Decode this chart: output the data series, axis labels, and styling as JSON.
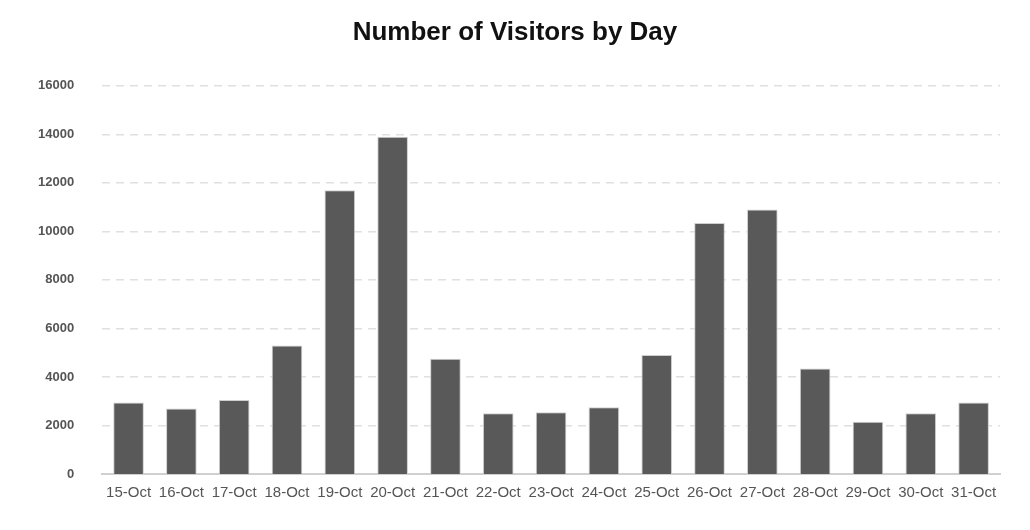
{
  "chart_data": {
    "type": "bar",
    "title": "Number of Visitors by Day",
    "categories": [
      "15-Oct",
      "16-Oct",
      "17-Oct",
      "18-Oct",
      "19-Oct",
      "20-Oct",
      "21-Oct",
      "22-Oct",
      "23-Oct",
      "24-Oct",
      "25-Oct",
      "26-Oct",
      "27-Oct",
      "28-Oct",
      "29-Oct",
      "30-Oct",
      "31-Oct"
    ],
    "values": [
      2950,
      2700,
      3050,
      5300,
      11700,
      13900,
      4750,
      2500,
      2550,
      2750,
      4900,
      10350,
      10900,
      4350,
      2150,
      2500,
      2950
    ],
    "color": "#595959",
    "ylim": [
      0,
      16000
    ],
    "yticks": [
      0,
      2000,
      4000,
      6000,
      8000,
      10000,
      12000,
      14000,
      16000
    ],
    "grid": "y",
    "legend": false
  }
}
